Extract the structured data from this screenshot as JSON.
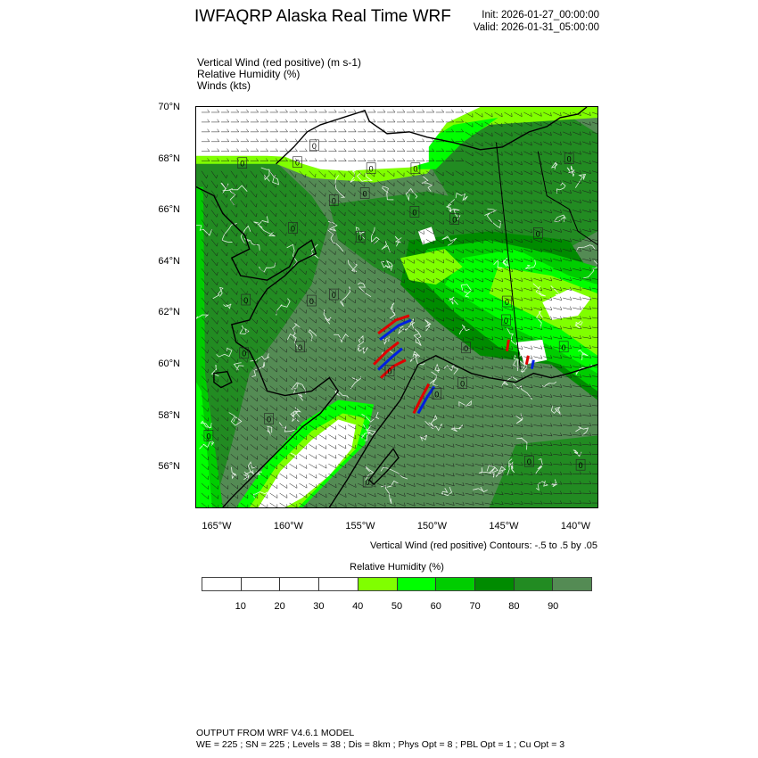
{
  "header": {
    "title": "IWFAQRP Alaska Real Time WRF",
    "init": "Init: 2026-01-27_00:00:00",
    "valid": "Valid: 2026-01-31_05:00:00"
  },
  "fields": [
    "Vertical Wind (red positive)   (m s-1)",
    "Relative Humidity   (%)",
    "Winds   (kts)"
  ],
  "map": {
    "lat_labels": [
      "70°N",
      "68°N",
      "66°N",
      "64°N",
      "62°N",
      "60°N",
      "58°N",
      "56°N"
    ],
    "lat_values": [
      70,
      68,
      66,
      64,
      62,
      60,
      58,
      56
    ],
    "lon_labels": [
      "165°W",
      "160°W",
      "155°W",
      "150°W",
      "145°W",
      "140°W"
    ],
    "lon_values": [
      -165,
      -160,
      -155,
      -150,
      -145,
      -140
    ],
    "contour_zero_label": "0",
    "colors": {
      "rh_90_100": "#548b54",
      "rh_80_90": "#228b22",
      "rh_70_80": "#008b00",
      "rh_60_70": "#00cd00",
      "rh_50_60": "#00ff00",
      "rh_40_50": "#80ff00",
      "positive_w": "#e00000",
      "negative_w": "#0020e0"
    }
  },
  "contour_note": "Vertical Wind (red positive) Contours: -.5 to .5 by .05",
  "colorbar": {
    "title": "Relative Humidity  (%)",
    "labels": [
      "10",
      "20",
      "30",
      "40",
      "50",
      "60",
      "70",
      "80",
      "90"
    ],
    "colors": [
      "#ffffff",
      "#ffffff",
      "#ffffff",
      "#ffffff",
      "#80ff00",
      "#00ff00",
      "#00cd00",
      "#008b00",
      "#228b22",
      "#548b54"
    ]
  },
  "footer": {
    "line1": "OUTPUT FROM WRF V4.6.1 MODEL",
    "line2": "WE = 225 ; SN = 225 ; Levels = 38 ; Dis = 8km ; Phys Opt = 8 ; PBL Opt = 1 ; Cu Opt = 3"
  }
}
